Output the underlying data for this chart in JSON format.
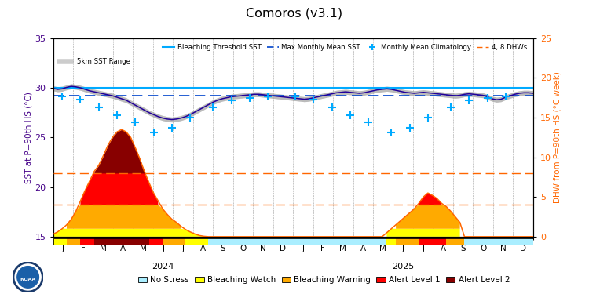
{
  "title": "Comoros (v3.1)",
  "ylabel_left": "SST at P=90th HS (°C)",
  "ylabel_right": "DHW from P=90th HS (°C week)",
  "bleaching_threshold": 30.0,
  "max_monthly_mean": 29.2,
  "ylim_left": [
    15,
    35
  ],
  "ylim_right": [
    0,
    25
  ],
  "months_labels": [
    "J",
    "F",
    "M",
    "A",
    "M",
    "J",
    "J",
    "A",
    "S",
    "O",
    "N",
    "D",
    "J",
    "F",
    "M",
    "A",
    "M",
    "J",
    "J",
    "A",
    "S",
    "O",
    "N",
    "D"
  ],
  "year_labels": [
    "2024",
    "2025"
  ],
  "colors": {
    "bleaching_threshold": "#00aaff",
    "max_monthly_mean": "#0044cc",
    "climatology": "#00aaff",
    "dhw_lines": "#ff6600",
    "sst_line": "#220099",
    "sst_range": "#aaaaaa",
    "no_stress": "#aaeeff",
    "watch": "#ffff00",
    "warning": "#ffaa00",
    "alert1": "#ff0000",
    "alert2": "#880000",
    "left_label": "#440088",
    "right_label": "#ff6600"
  },
  "sst_data": [
    29.95,
    29.85,
    29.9,
    30.05,
    30.15,
    30.1,
    30.0,
    29.85,
    29.7,
    29.6,
    29.5,
    29.4,
    29.3,
    29.2,
    29.05,
    28.9,
    28.75,
    28.5,
    28.25,
    28.0,
    27.75,
    27.5,
    27.3,
    27.1,
    26.95,
    26.85,
    26.8,
    26.85,
    26.95,
    27.1,
    27.3,
    27.55,
    27.8,
    28.05,
    28.3,
    28.55,
    28.75,
    28.9,
    29.0,
    29.1,
    29.15,
    29.2,
    29.25,
    29.3,
    29.35,
    29.35,
    29.3,
    29.25,
    29.2,
    29.15,
    29.1,
    29.05,
    29.0,
    28.95,
    28.9,
    28.85,
    28.9,
    29.0,
    29.1,
    29.2,
    29.3,
    29.4,
    29.5,
    29.55,
    29.6,
    29.55,
    29.5,
    29.45,
    29.5,
    29.6,
    29.7,
    29.8,
    29.85,
    29.9,
    29.85,
    29.75,
    29.65,
    29.55,
    29.5,
    29.45,
    29.5,
    29.55,
    29.5,
    29.45,
    29.4,
    29.35,
    29.3,
    29.25,
    29.2,
    29.25,
    29.35,
    29.4,
    29.35,
    29.3,
    29.25,
    29.1,
    28.9,
    28.8,
    28.85,
    29.05,
    29.2,
    29.35,
    29.45,
    29.5,
    29.5,
    29.45
  ],
  "sst_range_low": [
    29.7,
    29.6,
    29.65,
    29.8,
    29.9,
    29.85,
    29.75,
    29.6,
    29.45,
    29.35,
    29.25,
    29.15,
    29.05,
    28.95,
    28.8,
    28.65,
    28.5,
    28.25,
    28.0,
    27.75,
    27.5,
    27.25,
    27.05,
    26.85,
    26.7,
    26.6,
    26.55,
    26.6,
    26.7,
    26.85,
    27.05,
    27.3,
    27.55,
    27.8,
    28.05,
    28.3,
    28.5,
    28.65,
    28.75,
    28.85,
    28.9,
    28.95,
    29.0,
    29.05,
    29.1,
    29.1,
    29.05,
    29.0,
    28.95,
    28.9,
    28.85,
    28.8,
    28.75,
    28.7,
    28.65,
    28.6,
    28.65,
    28.75,
    28.85,
    28.95,
    29.05,
    29.15,
    29.25,
    29.3,
    29.35,
    29.3,
    29.25,
    29.2,
    29.25,
    29.35,
    29.45,
    29.55,
    29.6,
    29.65,
    29.6,
    29.5,
    29.4,
    29.3,
    29.25,
    29.2,
    29.25,
    29.3,
    29.25,
    29.2,
    29.15,
    29.1,
    29.05,
    29.0,
    28.95,
    29.0,
    29.1,
    29.15,
    29.1,
    29.05,
    29.0,
    28.85,
    28.65,
    28.55,
    28.6,
    28.8,
    28.95,
    29.1,
    29.2,
    29.25,
    29.25,
    29.2
  ],
  "sst_range_high": [
    30.2,
    30.1,
    30.15,
    30.3,
    30.4,
    30.35,
    30.25,
    30.1,
    29.95,
    29.85,
    29.75,
    29.65,
    29.55,
    29.45,
    29.3,
    29.15,
    29.0,
    28.75,
    28.5,
    28.25,
    28.0,
    27.75,
    27.55,
    27.35,
    27.2,
    27.1,
    27.05,
    27.1,
    27.2,
    27.35,
    27.55,
    27.8,
    28.05,
    28.3,
    28.55,
    28.8,
    29.0,
    29.15,
    29.25,
    29.35,
    29.4,
    29.45,
    29.5,
    29.55,
    29.6,
    29.6,
    29.55,
    29.5,
    29.45,
    29.4,
    29.35,
    29.3,
    29.25,
    29.2,
    29.15,
    29.1,
    29.15,
    29.25,
    29.35,
    29.45,
    29.55,
    29.65,
    29.75,
    29.8,
    29.85,
    29.8,
    29.75,
    29.7,
    29.75,
    29.85,
    29.95,
    30.05,
    30.1,
    30.15,
    30.1,
    30.0,
    29.9,
    29.8,
    29.75,
    29.7,
    29.75,
    29.8,
    29.75,
    29.7,
    29.65,
    29.6,
    29.55,
    29.5,
    29.45,
    29.5,
    29.6,
    29.65,
    29.6,
    29.55,
    29.5,
    29.35,
    29.15,
    29.05,
    29.1,
    29.3,
    29.45,
    29.6,
    29.7,
    29.75,
    29.75,
    29.7
  ],
  "dhw_data": [
    0.3,
    0.6,
    1.0,
    1.5,
    2.2,
    3.2,
    4.5,
    5.8,
    7.0,
    8.2,
    9.0,
    10.2,
    11.5,
    12.5,
    13.2,
    13.5,
    13.2,
    12.5,
    11.2,
    9.8,
    8.2,
    6.8,
    5.5,
    4.5,
    3.5,
    2.8,
    2.2,
    1.8,
    1.3,
    0.9,
    0.6,
    0.35,
    0.15,
    0.05,
    0.0,
    0.0,
    0.0,
    0.0,
    0.0,
    0.0,
    0.0,
    0.0,
    0.0,
    0.0,
    0.0,
    0.0,
    0.0,
    0.0,
    0.0,
    0.0,
    0.0,
    0.0,
    0.0,
    0.0,
    0.0,
    0.0,
    0.0,
    0.0,
    0.0,
    0.0,
    0.0,
    0.0,
    0.0,
    0.0,
    0.0,
    0.0,
    0.0,
    0.0,
    0.0,
    0.0,
    0.0,
    0.0,
    0.0,
    0.5,
    1.0,
    1.5,
    2.0,
    2.5,
    3.0,
    3.5,
    4.2,
    5.0,
    5.5,
    5.2,
    4.8,
    4.2,
    3.8,
    3.2,
    2.5,
    1.8,
    0.0,
    0.0,
    0.0,
    0.0,
    0.0,
    0.0,
    0.0,
    0.0,
    0.0,
    0.0,
    0.0,
    0.0,
    0.0,
    0.0,
    0.0,
    0.0
  ],
  "clim_x": [
    2,
    6,
    10,
    14,
    18,
    22,
    26,
    30,
    35,
    39,
    43,
    47,
    53,
    57,
    61,
    65,
    69,
    74,
    78,
    82,
    87,
    91,
    95,
    99
  ],
  "clim_y": [
    29.1,
    28.8,
    28.0,
    27.2,
    26.5,
    25.5,
    26.0,
    27.0,
    28.0,
    28.7,
    29.0,
    29.1,
    29.1,
    28.8,
    28.0,
    27.2,
    26.5,
    25.5,
    26.0,
    27.0,
    28.0,
    28.7,
    29.0,
    29.1
  ],
  "n_months": 24
}
